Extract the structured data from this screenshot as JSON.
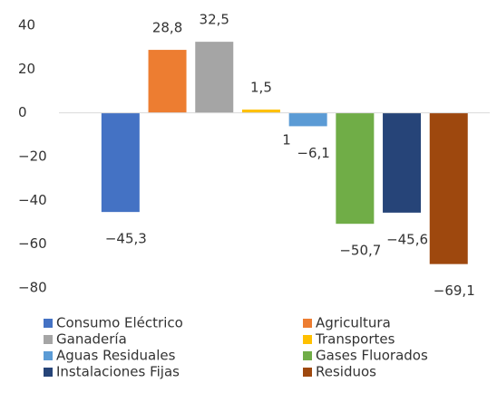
{
  "chart_data": {
    "type": "bar",
    "series": [
      {
        "name": "Consumo Eléctrico",
        "color": "#4472c4",
        "values": [
          -45.3
        ],
        "value_labels": [
          "−45,3"
        ]
      },
      {
        "name": "Agricultura",
        "color": "#ed7d31",
        "values": [
          28.8
        ],
        "value_labels": [
          "28,8"
        ]
      },
      {
        "name": "Ganadería",
        "color": "#a5a5a5",
        "values": [
          32.5
        ],
        "value_labels": [
          "32,5"
        ]
      },
      {
        "name": "Transportes",
        "color": "#ffc000",
        "values": [
          1.5
        ],
        "value_labels": [
          "1,5"
        ]
      },
      {
        "name": "Aguas Residuales",
        "color": "#5b9bd5",
        "values": [
          -6.1
        ],
        "value_labels": [
          "−6,1"
        ]
      },
      {
        "name": "Gases Fluorados",
        "color": "#70ad47",
        "values": [
          -50.7
        ],
        "value_labels": [
          "−50,7"
        ]
      },
      {
        "name": "Instalaciones Fijas",
        "color": "#264478",
        "values": [
          -45.6
        ],
        "value_labels": [
          "−45,6"
        ]
      },
      {
        "name": "Residuos",
        "color": "#9e480e",
        "values": [
          -69.1
        ],
        "value_labels": [
          "−69,1"
        ]
      }
    ],
    "annotations": [
      "1"
    ],
    "ylim": [
      -80,
      40
    ],
    "yticks": [
      {
        "value": -80,
        "label": "−80"
      },
      {
        "value": -60,
        "label": "−60"
      },
      {
        "value": -40,
        "label": "−40"
      },
      {
        "value": -20,
        "label": "−20"
      },
      0,
      20,
      40
    ],
    "grid": false
  }
}
